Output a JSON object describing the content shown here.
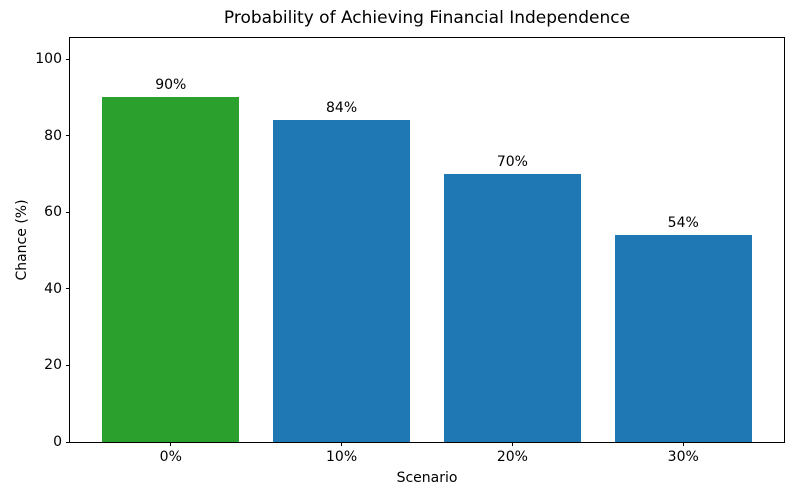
{
  "chart_data": {
    "type": "bar",
    "title": "Probability of Achieving Financial Independence",
    "xlabel": "Scenario",
    "ylabel": "Chance (%)",
    "categories": [
      "0%",
      "10%",
      "20%",
      "30%"
    ],
    "values": [
      90,
      84,
      70,
      54
    ],
    "bar_labels": [
      "90%",
      "84%",
      "70%",
      "54%"
    ],
    "bar_colors": [
      "#2ca02c",
      "#1f77b4",
      "#1f77b4",
      "#1f77b4"
    ],
    "ylim": [
      0,
      105.5
    ],
    "yticks": [
      0,
      20,
      40,
      60,
      80,
      100
    ],
    "grid": false,
    "legend": null,
    "bar_width_fraction": 0.8,
    "axis_color": "#000000",
    "background_color": "#ffffff"
  }
}
